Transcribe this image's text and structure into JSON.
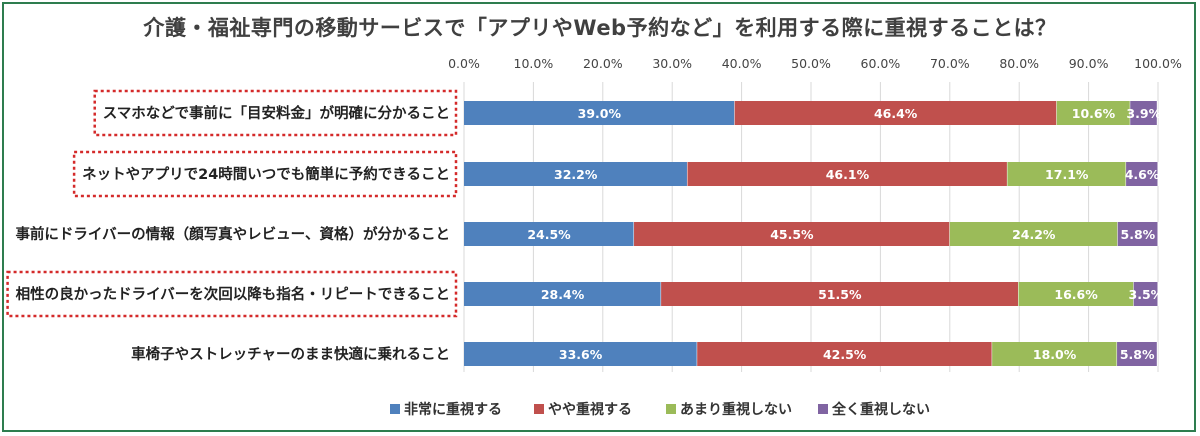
{
  "colors": {
    "frame": "#2e7d4f",
    "highlight_box": "#d42a2a",
    "grid": "#d9d9d9"
  },
  "chart_data": {
    "type": "bar",
    "orientation": "horizontal-stacked-percent",
    "title": "介護・福祉専門の移動サービスで「アプリやWeb予約など」を利用する際に重視することは？",
    "xlim": [
      0,
      100
    ],
    "ticks": [
      "0.0%",
      "10.0%",
      "20.0%",
      "30.0%",
      "40.0%",
      "50.0%",
      "60.0%",
      "70.0%",
      "80.0%",
      "90.0%",
      "100.0%"
    ],
    "grid": true,
    "legend_position": "bottom",
    "categories": [
      "スマホなどで事前に「目安料金」が明確に分かること",
      "ネットやアプリで24時間いつでも簡単に予約できること",
      "事前にドライバーの情報（顔写真やレビュー、資格）が分かること",
      "相性の良かったドライバーを次回以降も指名・リピートできること",
      "車椅子やストレッチャーのまま快適に乗れること"
    ],
    "highlighted_categories": [
      0,
      1,
      3
    ],
    "series": [
      {
        "name": "非常に重視する",
        "color": "#4f81bd",
        "values": [
          39.0,
          32.2,
          24.5,
          28.4,
          33.6
        ]
      },
      {
        "name": "やや重視する",
        "color": "#c0504d",
        "values": [
          46.4,
          46.1,
          45.5,
          51.5,
          42.5
        ]
      },
      {
        "name": "あまり重視しない",
        "color": "#9bbb59",
        "values": [
          10.6,
          17.1,
          24.2,
          16.6,
          18.0
        ]
      },
      {
        "name": "全く重視しない",
        "color": "#8064a2",
        "values": [
          3.9,
          4.6,
          5.8,
          3.5,
          5.8
        ]
      }
    ]
  }
}
